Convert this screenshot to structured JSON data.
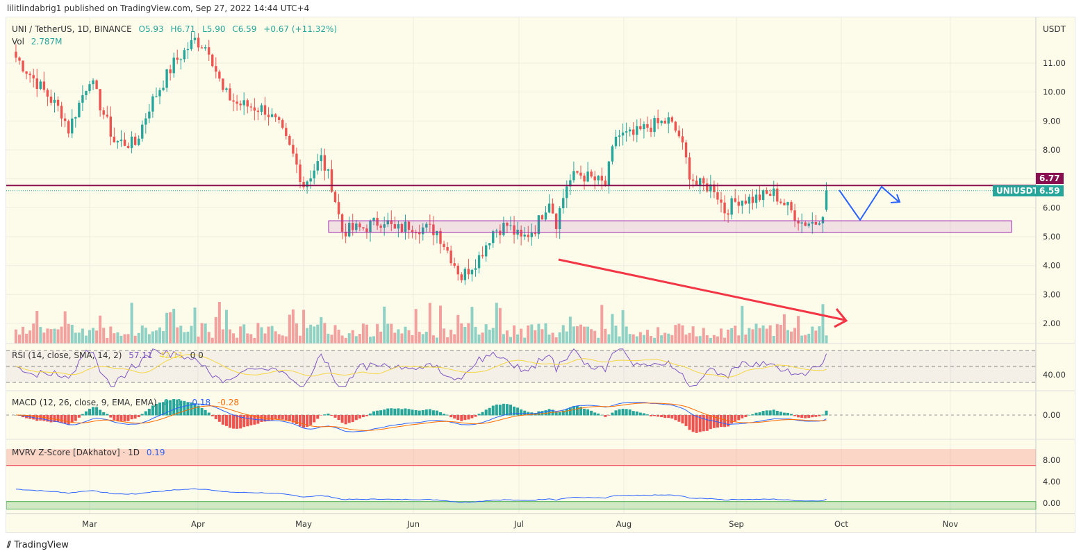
{
  "header": {
    "published": "lilitlindabrig1 published on TradingView.com, Sep 27, 2022 14:44 UTC+4"
  },
  "legend": {
    "symbol": "UNI / TetherUS, 1D, BINANCE",
    "open": "O5.93",
    "high": "H6.71",
    "low": "L5.90",
    "close": "C6.59",
    "change": "+0.67 (+11.32%)",
    "vol_label": "Vol",
    "vol_value": "2.787M"
  },
  "rsi": {
    "label": "RSI (14, close, SMA, 14, 2)",
    "value": "57.11",
    "sma": "42.11",
    "extra": "0 0",
    "axis": "40.00"
  },
  "macd": {
    "label": "MACD (12, 26, close, 9, EMA, EMA)",
    "hist": "0.11",
    "macd": "-0.18",
    "signal": "-0.28",
    "axis": "0.00"
  },
  "mvrv": {
    "label": "MVRV Z-Score [DAkhatov] · 1D",
    "value": "0.19",
    "axis": [
      "8.00",
      "4.00",
      "0.00"
    ]
  },
  "price_axis": {
    "currency": "USDT",
    "ticks": [
      "11.00",
      "10.00",
      "9.00",
      "8.00",
      "6.00",
      "5.00",
      "4.00",
      "3.00",
      "2.00"
    ],
    "resistance_label": "6.77",
    "price_label": "6.59",
    "symbol_tag": "UNIUSDT"
  },
  "time_axis": [
    "Mar",
    "Apr",
    "May",
    "Jun",
    "Jul",
    "Aug",
    "Sep",
    "Oct",
    "Nov"
  ],
  "footer": {
    "brand": "TradingView"
  },
  "colors": {
    "up": "#26a69a",
    "down": "#ef5350",
    "resistance": "#880e4f",
    "zone": "#9c27b0",
    "arrow_red": "#f23645",
    "arrow_blue": "#2962ff",
    "bg": "#fdfbea"
  },
  "chart_data": {
    "type": "candlestick",
    "symbol": "UNI / TetherUS",
    "interval": "1D",
    "ylim": [
      1.5,
      12.5
    ],
    "close_keypoints": [
      [
        "2022-02-08",
        11.2
      ],
      [
        "2022-02-21",
        9.3
      ],
      [
        "2022-02-23",
        8.7
      ],
      [
        "2022-03-01",
        10.5
      ],
      [
        "2022-03-08",
        8.3
      ],
      [
        "2022-03-14",
        8.2
      ],
      [
        "2022-03-18",
        9.5
      ],
      [
        "2022-03-25",
        11.0
      ],
      [
        "2022-03-31",
        11.8
      ],
      [
        "2022-04-04",
        11.5
      ],
      [
        "2022-04-08",
        10.0
      ],
      [
        "2022-04-12",
        9.6
      ],
      [
        "2022-04-20",
        9.4
      ],
      [
        "2022-04-24",
        8.8
      ],
      [
        "2022-04-28",
        7.8
      ],
      [
        "2022-05-01",
        6.8
      ],
      [
        "2022-05-06",
        7.7
      ],
      [
        "2022-05-09",
        6.8
      ],
      [
        "2022-05-12",
        5.2
      ],
      [
        "2022-05-18",
        5.3
      ],
      [
        "2022-05-24",
        5.6
      ],
      [
        "2022-05-27",
        5.2
      ],
      [
        "2022-05-31",
        5.4
      ],
      [
        "2022-06-08",
        5.2
      ],
      [
        "2022-06-12",
        4.3
      ],
      [
        "2022-06-15",
        3.6
      ],
      [
        "2022-06-20",
        4.3
      ],
      [
        "2022-06-24",
        5.2
      ],
      [
        "2022-06-28",
        5.4
      ],
      [
        "2022-07-02",
        4.9
      ],
      [
        "2022-07-06",
        5.3
      ],
      [
        "2022-07-10",
        6.3
      ],
      [
        "2022-07-12",
        5.5
      ],
      [
        "2022-07-15",
        6.8
      ],
      [
        "2022-07-18",
        7.2
      ],
      [
        "2022-07-26",
        6.8
      ],
      [
        "2022-07-29",
        8.5
      ],
      [
        "2022-08-03",
        8.5
      ],
      [
        "2022-08-07",
        8.8
      ],
      [
        "2022-08-13",
        9.0
      ],
      [
        "2022-08-16",
        8.5
      ],
      [
        "2022-08-19",
        7.2
      ],
      [
        "2022-08-21",
        6.8
      ],
      [
        "2022-08-26",
        6.7
      ],
      [
        "2022-08-29",
        5.9
      ],
      [
        "2022-09-02",
        6.3
      ],
      [
        "2022-09-06",
        6.3
      ],
      [
        "2022-09-12",
        6.5
      ],
      [
        "2022-09-16",
        6.0
      ],
      [
        "2022-09-20",
        5.5
      ],
      [
        "2022-09-24",
        5.5
      ],
      [
        "2022-09-26",
        5.9
      ],
      [
        "2022-09-27",
        6.59
      ]
    ],
    "last_ohlc": {
      "open": 5.93,
      "high": 6.71,
      "low": 5.9,
      "close": 6.59
    },
    "resistance": 6.77,
    "support_zone": [
      5.15,
      5.55
    ],
    "indicators": {
      "rsi": 57.11,
      "rsi_sma": 42.11,
      "macd_hist": 0.11,
      "macd": -0.18,
      "macd_signal": -0.28,
      "mvrv_z": 0.19
    }
  }
}
